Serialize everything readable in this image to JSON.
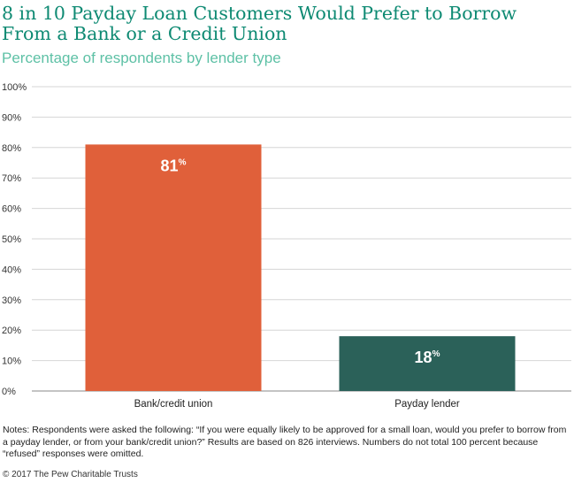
{
  "title": "8 in 10 Payday Loan Customers Would Prefer to Borrow From a Bank or a Credit Union",
  "subtitle": "Percentage of respondents by lender type",
  "notes": "Notes: Respondents were asked the following: “If you were equally likely to be approved for a small loan, would you prefer to borrow from a payday lender, or from your bank/credit union?” Results are based on 826 interviews. Numbers do not total 100 percent because “refused” responses were omitted.",
  "copyright": "© 2017 The Pew Charitable Trusts",
  "chart_data": {
    "type": "bar",
    "categories": [
      "Bank/credit union",
      "Payday lender"
    ],
    "values": [
      81,
      18
    ],
    "data_labels": [
      "81",
      "18"
    ],
    "data_label_suffix": "%",
    "colors": [
      "#e0603a",
      "#2b6159"
    ],
    "ylim": [
      0,
      100
    ],
    "yticks": [
      0,
      10,
      20,
      30,
      40,
      50,
      60,
      70,
      80,
      90,
      100
    ],
    "ytick_labels": [
      "0%",
      "10%",
      "20%",
      "30%",
      "40%",
      "50%",
      "60%",
      "70%",
      "80%",
      "90%",
      "100%"
    ],
    "grid": true,
    "xlabel": "",
    "ylabel": ""
  }
}
